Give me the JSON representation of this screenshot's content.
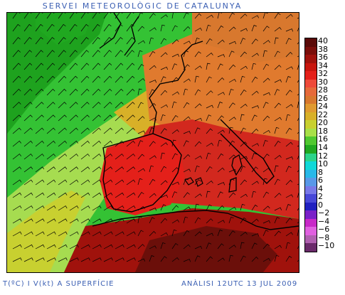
{
  "header": {
    "title": "SERVEI METEOROLÒGIC DE CATALUNYA"
  },
  "footer": {
    "variable": "T(ºC) I V(kt) A SUPERFÍCIE",
    "analysis": "ANÀLISI 12UTC 13 JUL 2009"
  },
  "colors": {
    "title": "#3b5fb3",
    "sea_green_dark": "#1ea21e",
    "sea_green": "#34c234",
    "sea_light_green": "#a6dc50",
    "warm_orange": "#e07a2e",
    "hot_red": "#d2281e",
    "very_hot": "#6b0f0a"
  },
  "legend": {
    "items": [
      {
        "label": "40",
        "color": "#5a0a08"
      },
      {
        "label": "38",
        "color": "#7a0e0a"
      },
      {
        "label": "36",
        "color": "#a0120c"
      },
      {
        "label": "34",
        "color": "#c8160e"
      },
      {
        "label": "32",
        "color": "#e4201a"
      },
      {
        "label": "30",
        "color": "#ee4a3a"
      },
      {
        "label": "28",
        "color": "#e66a3a"
      },
      {
        "label": "26",
        "color": "#d8782e"
      },
      {
        "label": "24",
        "color": "#e09a30"
      },
      {
        "label": "22",
        "color": "#d8b028"
      },
      {
        "label": "20",
        "color": "#c8d030"
      },
      {
        "label": "18",
        "color": "#a8e048"
      },
      {
        "label": "16",
        "color": "#50c830"
      },
      {
        "label": "14",
        "color": "#20a820"
      },
      {
        "label": "12",
        "color": "#2cd48a"
      },
      {
        "label": "10",
        "color": "#10d8d8"
      },
      {
        "label": "8",
        "color": "#28b8e8"
      },
      {
        "label": "6",
        "color": "#5898e8"
      },
      {
        "label": "4",
        "color": "#7878e8"
      },
      {
        "label": "2",
        "color": "#4848d8"
      },
      {
        "label": "0",
        "color": "#2020c0"
      },
      {
        "label": "−2",
        "color": "#7a20c8"
      },
      {
        "label": "−4",
        "color": "#c828c8"
      },
      {
        "label": "−6",
        "color": "#e060e0"
      },
      {
        "label": "−8",
        "color": "#b060b0"
      },
      {
        "label": "−10",
        "color": "#6a2a6a"
      }
    ]
  }
}
